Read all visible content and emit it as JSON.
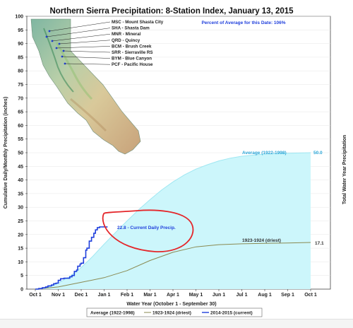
{
  "chart_data": {
    "type": "line",
    "title": "Northern Sierra Precipitation: 8-Station Index, January 13, 2015",
    "note": "Percent of Average for this Date: 106%",
    "xlabel": "Water Year (October 1 - September 30)",
    "ylabel": "Cumulative Daily/Monthly Precipitation (inches)",
    "ylabel_right": "Total Water Year Precipitation",
    "x_ticks": [
      "Oct 1",
      "Nov 1",
      "Dec 1",
      "Jan 1",
      "Feb 1",
      "Mar 1",
      "Apr 1",
      "May 1",
      "Jun 1",
      "Jul 1",
      "Aug 1",
      "Sep 1",
      "Oct 1"
    ],
    "y_ticks": [
      0,
      5,
      10,
      15,
      20,
      25,
      30,
      35,
      40,
      45,
      50,
      55,
      60,
      65,
      70,
      75,
      80,
      85,
      90,
      95,
      100
    ],
    "ylim": [
      0,
      100
    ],
    "xlim_months": [
      0,
      12
    ],
    "series": [
      {
        "name": "Average (1922-1998)",
        "role": "average",
        "color": "#ccf6fb",
        "points": [
          [
            0,
            0
          ],
          [
            0.5,
            0.5
          ],
          [
            1,
            2.2
          ],
          [
            1.5,
            4.6
          ],
          [
            2,
            7.9
          ],
          [
            2.5,
            12
          ],
          [
            3,
            16.5
          ],
          [
            3.5,
            20.8
          ],
          [
            4,
            25
          ],
          [
            4.5,
            29.1
          ],
          [
            5,
            32.8
          ],
          [
            5.5,
            36.3
          ],
          [
            6,
            39.3
          ],
          [
            6.5,
            41.9
          ],
          [
            7,
            44
          ],
          [
            7.5,
            45.6
          ],
          [
            8,
            47
          ],
          [
            8.5,
            48
          ],
          [
            9,
            48.7
          ],
          [
            10,
            49.5
          ],
          [
            11,
            49.8
          ],
          [
            12,
            50
          ]
        ]
      },
      {
        "name": "1923-1924 (driest)",
        "role": "driest",
        "color": "#8a8a52",
        "points": [
          [
            0,
            0
          ],
          [
            1,
            0.8
          ],
          [
            2,
            2.5
          ],
          [
            3,
            4.2
          ],
          [
            4,
            6.8
          ],
          [
            5,
            10.5
          ],
          [
            6,
            13.5
          ],
          [
            7,
            15.5
          ],
          [
            8,
            16.3
          ],
          [
            9,
            16.6
          ],
          [
            10,
            16.8
          ],
          [
            11,
            16.9
          ],
          [
            12,
            17.1
          ]
        ]
      },
      {
        "name": "2014-2015 (current)",
        "role": "current",
        "color": "#1f3fdc",
        "points": [
          [
            0,
            0
          ],
          [
            0.15,
            0.2
          ],
          [
            0.3,
            0.5
          ],
          [
            0.45,
            0.8
          ],
          [
            0.55,
            1.2
          ],
          [
            0.7,
            1.5
          ],
          [
            0.8,
            2.0
          ],
          [
            0.9,
            2.2
          ],
          [
            1.0,
            3.2
          ],
          [
            1.1,
            3.8
          ],
          [
            1.25,
            4.0
          ],
          [
            1.4,
            4.0
          ],
          [
            1.5,
            4.5
          ],
          [
            1.6,
            5.0
          ],
          [
            1.7,
            6.5
          ],
          [
            1.8,
            7.0
          ],
          [
            1.85,
            8.4
          ],
          [
            1.95,
            9.2
          ],
          [
            2.0,
            9.5
          ],
          [
            2.1,
            11.5
          ],
          [
            2.2,
            14.3
          ],
          [
            2.25,
            15.0
          ],
          [
            2.35,
            17.6
          ],
          [
            2.45,
            19.0
          ],
          [
            2.55,
            20.5
          ],
          [
            2.62,
            21.7
          ],
          [
            2.7,
            22.5
          ],
          [
            2.8,
            22.8
          ],
          [
            2.9,
            22.8
          ],
          [
            3.0,
            22.8
          ],
          [
            3.07,
            22.8
          ],
          [
            3.15,
            22.8
          ]
        ]
      }
    ],
    "annotations": {
      "average_label": "Average (1922-1998)",
      "average_value": "50.0",
      "driest_label": "1923-1924 (driest)",
      "driest_value": "17.1",
      "current_label": "22.8  -  Current Daily Precip."
    },
    "legend": {
      "position": "bottom",
      "items": [
        "Average (1922-1998)",
        "1923-1924 (driest)",
        "2014-2015 (current)"
      ]
    },
    "stations": [
      "MSC - Mount Shasta City",
      "SHA - Shasta Dam",
      "MNR - Mineral",
      "QRD - Quincy",
      "BCM - Brush Creek",
      "SRR - Sierraville RS",
      "BYM - Blue Canyon",
      "PCF - Pacific House"
    ],
    "colors": {
      "average_fill": "#ccf6fb",
      "average_line": "#2aa6d8",
      "driest": "#8a8a52",
      "current": "#1f3fdc",
      "highlight_circle": "#e4262a"
    }
  }
}
